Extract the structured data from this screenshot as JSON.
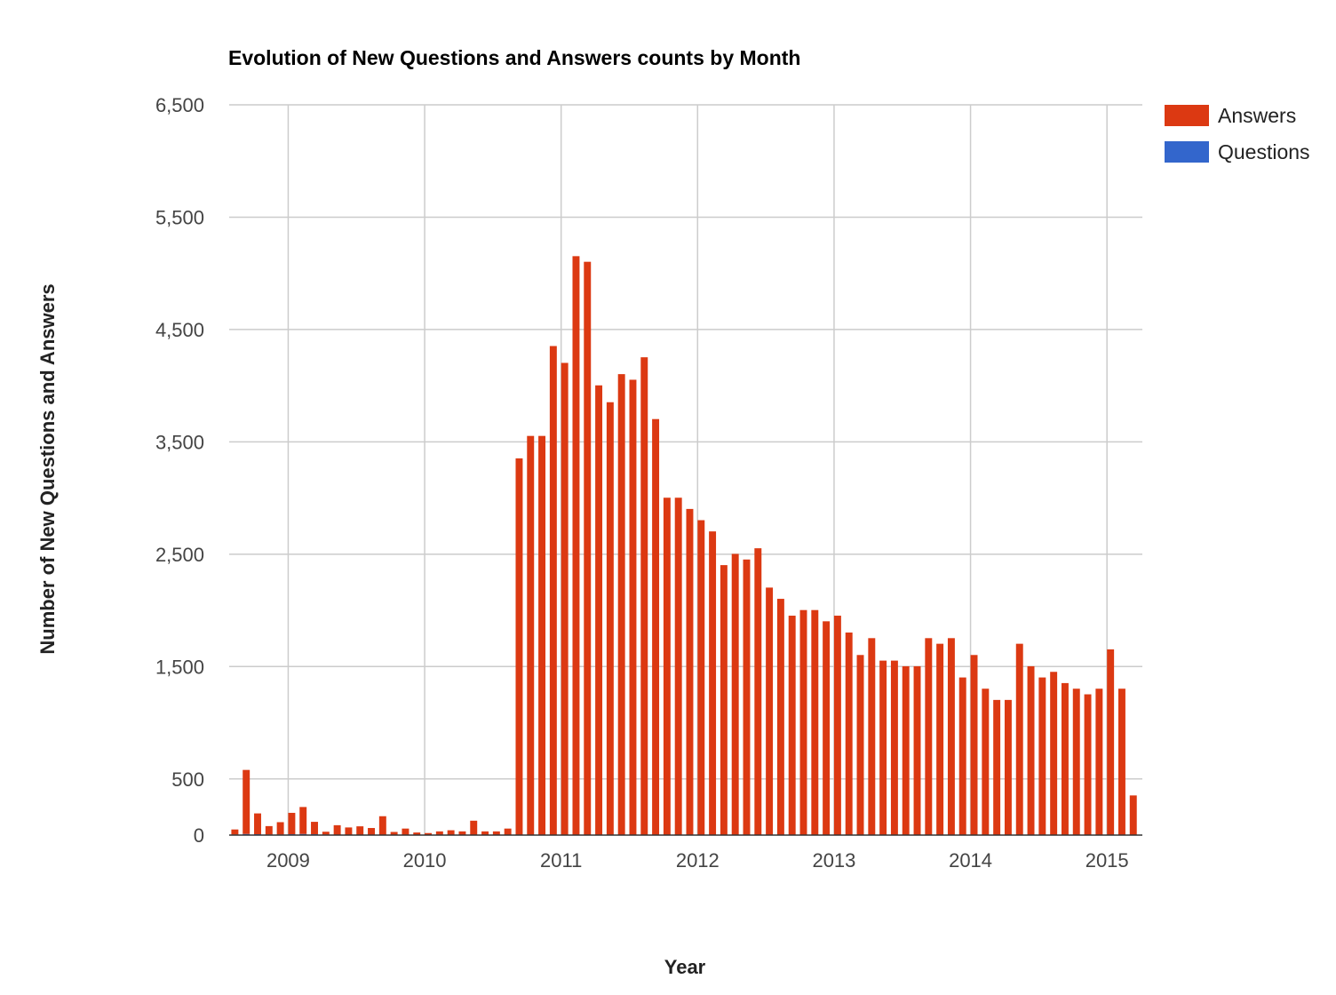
{
  "chart_data": {
    "type": "bar",
    "stacked": true,
    "title": "Evolution of New Questions and Answers counts by Month",
    "xlabel": "Year",
    "ylabel": "Number of New Questions and Answers",
    "ylim": [
      0,
      6500
    ],
    "yticks": [
      0,
      500,
      1500,
      2500,
      3500,
      4500,
      5500,
      6500
    ],
    "ytick_labels": [
      "0",
      "500",
      "1,500",
      "2,500",
      "3,500",
      "4,500",
      "5,500",
      "6,500"
    ],
    "xticks": [
      "2009",
      "2010",
      "2011",
      "2012",
      "2013",
      "2014",
      "2015"
    ],
    "x_start": "2008-08",
    "grid": true,
    "legend": "top-right",
    "colors": {
      "Questions": "#3366cc",
      "Answers": "#dc3912"
    },
    "series": [
      {
        "name": "Questions",
        "values": [
          5,
          10,
          8,
          5,
          5,
          8,
          10,
          8,
          5,
          3,
          3,
          3,
          3,
          3,
          3,
          3,
          3,
          3,
          3,
          3,
          3,
          3,
          3,
          3,
          3,
          3,
          3,
          3,
          3,
          3,
          3,
          3,
          3,
          3,
          3,
          3,
          3,
          3,
          3,
          3,
          3,
          3,
          3,
          3,
          3,
          3,
          3,
          3,
          3,
          3,
          3,
          3,
          3,
          3,
          3,
          3,
          3,
          3,
          3,
          3,
          3,
          3,
          3,
          3,
          3,
          3,
          3,
          3,
          3,
          3,
          3,
          3,
          3,
          3,
          3,
          3,
          3,
          3,
          3,
          3
        ]
      },
      {
        "name": "Answers",
        "values": [
          45,
          570,
          185,
          75,
          110,
          190,
          240,
          110,
          25,
          85,
          65,
          75,
          60,
          165,
          25,
          55,
          20,
          15,
          30,
          40,
          30,
          125,
          30,
          30,
          55,
          3350,
          3550,
          3550,
          4350,
          4200,
          5150,
          5100,
          4000,
          3850,
          4100,
          4050,
          4250,
          3700,
          3000,
          3000,
          2900,
          2800,
          2700,
          2400,
          2500,
          2450,
          2550,
          2200,
          2100,
          1950,
          2000,
          2000,
          1900,
          1950,
          1800,
          1600,
          1750,
          1550,
          1550,
          1500,
          1500,
          1750,
          1700,
          1750,
          1400,
          1600,
          1300,
          1200,
          1200,
          1700,
          1500,
          1400,
          1450,
          1350,
          1300,
          1250,
          1300,
          1650,
          1300,
          350
        ]
      }
    ]
  }
}
